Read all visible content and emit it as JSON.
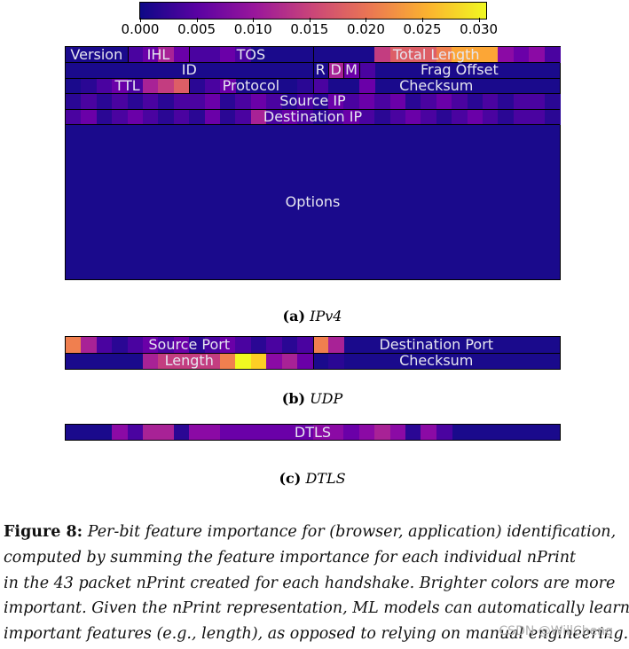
{
  "colorbar": {
    "ticks": [
      "0.000",
      "0.005",
      "0.010",
      "0.015",
      "0.020",
      "0.025",
      "0.030"
    ]
  },
  "ipv4": {
    "labels": {
      "version": "Version",
      "ihl": "IHL",
      "tos": "TOS",
      "total_length": "Total Length",
      "id": "ID",
      "r": "R",
      "d": "D",
      "m": "M",
      "frag_offset": "Frag Offset",
      "ttl": "TTL",
      "protocol": "Protocol",
      "checksum": "Checksum",
      "source_ip": "Source IP",
      "destination_ip": "Destination IP",
      "options": "Options"
    },
    "caption_letter": "(a)",
    "caption_name": "IPv4"
  },
  "udp": {
    "labels": {
      "source_port": "Source Port",
      "destination_port": "Destination Port",
      "length": "Length",
      "checksum": "Checksum"
    },
    "caption_letter": "(b)",
    "caption_name": "UDP"
  },
  "dtls": {
    "labels": {
      "dtls": "DTLS"
    },
    "caption_letter": "(c)",
    "caption_name": "DTLS"
  },
  "figure_caption": {
    "label": "Figure 8:",
    "lines": [
      "Per-bit feature importance for (browser, application) identification,",
      "computed by summing the feature importance for each individual nPrint",
      "in the 43 packet nPrint created for each handshake. Brighter colors are more",
      "important. Given the nPrint representation, ML models can automatically learn",
      "important features (e.g., length), as opposed to relying on manual engineering."
    ]
  },
  "watermark": "CSDN @WillCheng"
}
